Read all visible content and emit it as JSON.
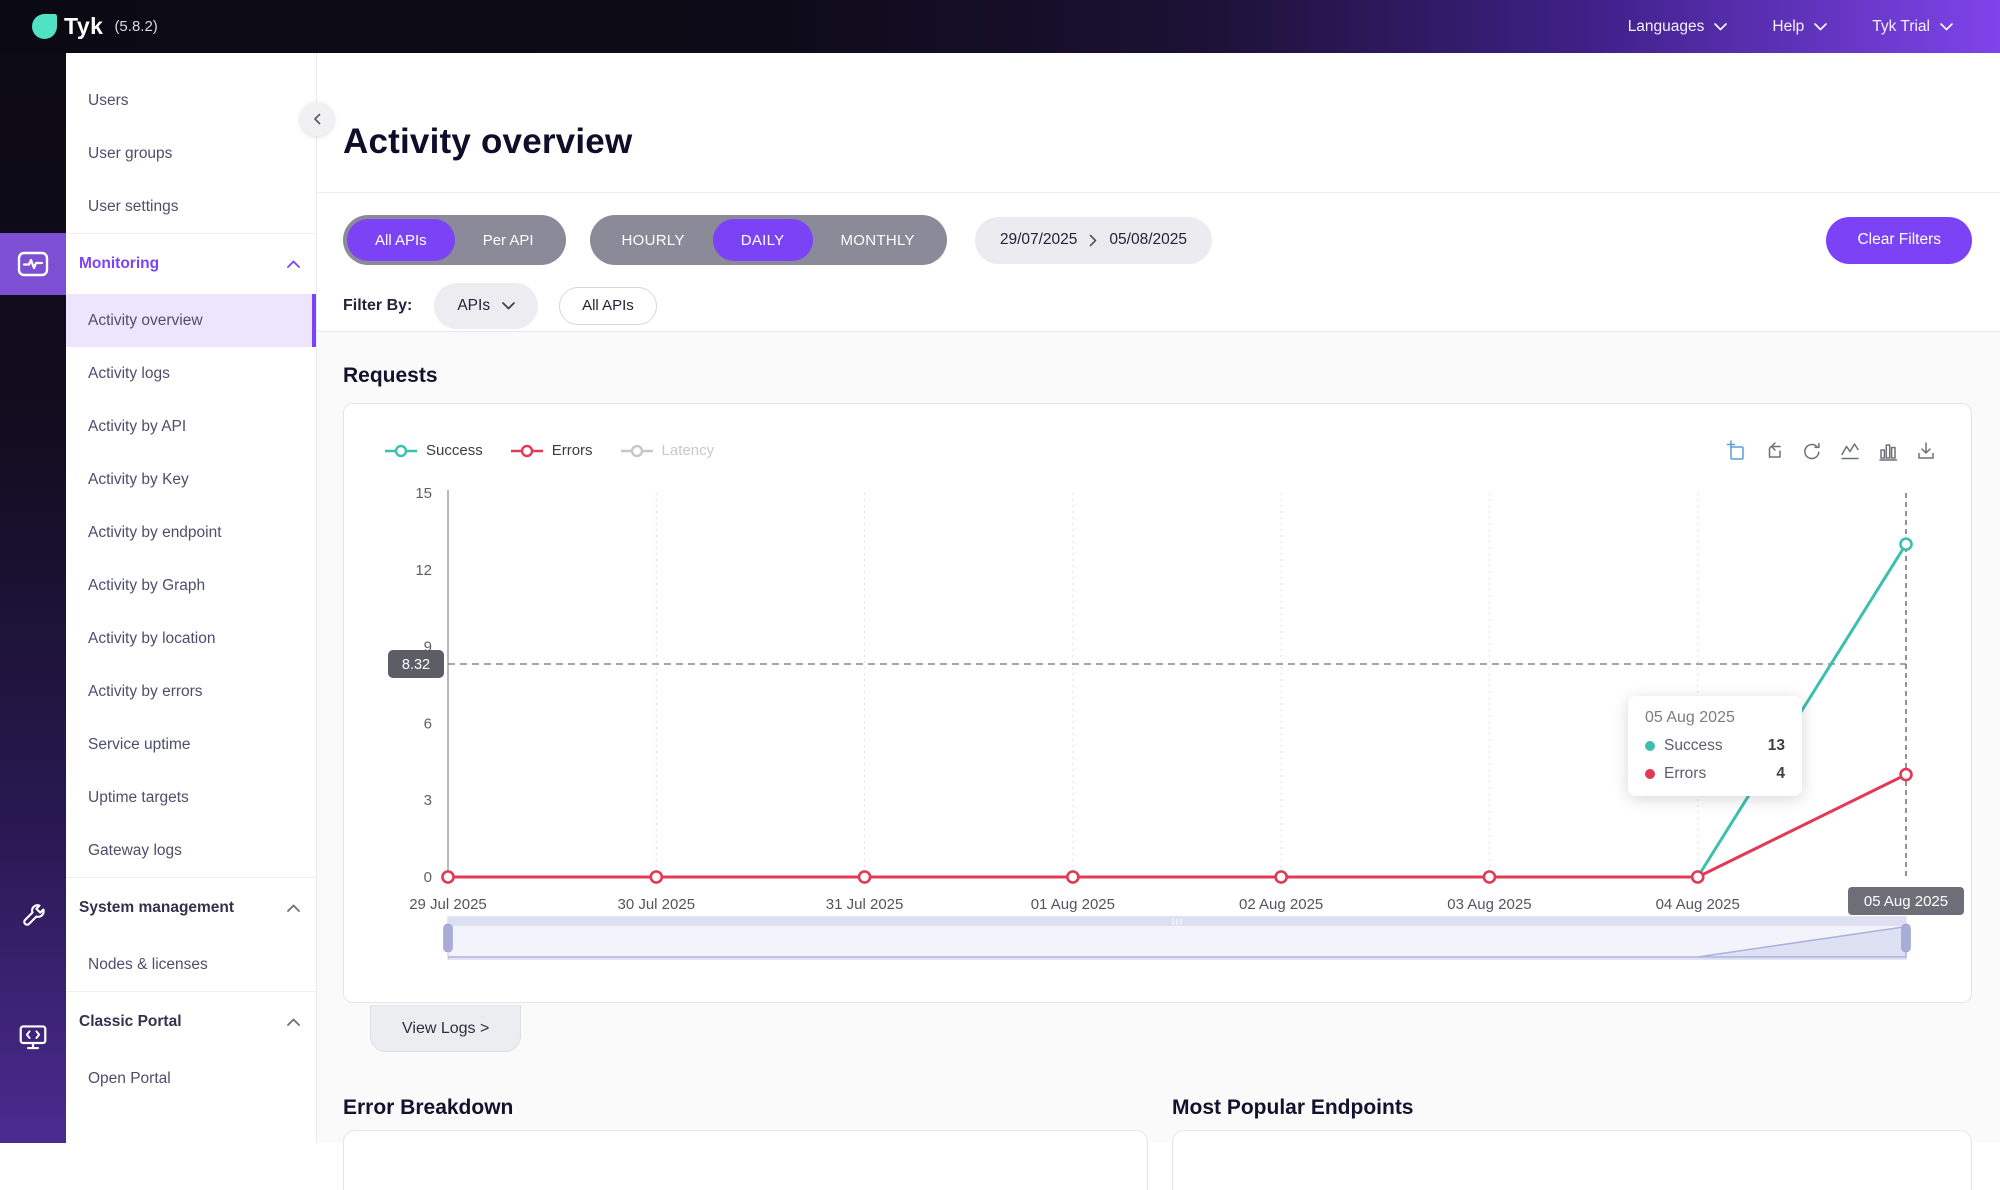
{
  "colors": {
    "accent": "#7B42F6",
    "success": "#3CBFAE",
    "errors": "#E23A55",
    "latency": "#C6C6CC"
  },
  "topbar": {
    "logo": "Tyk",
    "version": "(5.8.2)",
    "menus": [
      {
        "label": "Languages"
      },
      {
        "label": "Help"
      },
      {
        "label": "Tyk Trial"
      }
    ]
  },
  "sidebar": {
    "top_items": [
      {
        "label": "Users"
      },
      {
        "label": "User groups"
      },
      {
        "label": "User settings"
      }
    ],
    "sections": [
      {
        "label": "Monitoring",
        "expanded": true,
        "items": [
          {
            "label": "Activity overview",
            "active": true
          },
          {
            "label": "Activity logs"
          },
          {
            "label": "Activity by API"
          },
          {
            "label": "Activity by Key"
          },
          {
            "label": "Activity by endpoint"
          },
          {
            "label": "Activity by Graph"
          },
          {
            "label": "Activity by location"
          },
          {
            "label": "Activity by errors"
          },
          {
            "label": "Service uptime"
          },
          {
            "label": "Uptime targets"
          },
          {
            "label": "Gateway logs"
          }
        ]
      },
      {
        "label": "System management",
        "expanded": true,
        "items": [
          {
            "label": "Nodes & licenses"
          }
        ]
      },
      {
        "label": "Classic Portal",
        "expanded": true,
        "items": [
          {
            "label": "Open Portal"
          }
        ]
      }
    ]
  },
  "header": {
    "title": "Activity overview"
  },
  "filters": {
    "api_toggle": {
      "options": [
        "All APIs",
        "Per API"
      ],
      "selected": "All APIs"
    },
    "period_toggle": {
      "options": [
        "HOURLY",
        "DAILY",
        "MONTHLY"
      ],
      "selected": "DAILY"
    },
    "date_range": {
      "from": "29/07/2025",
      "to": "05/08/2025"
    },
    "filter_by_label": "Filter By:",
    "filter_dropdown": "APIs",
    "filter_chip": "All APIs",
    "clear_button": "Clear Filters"
  },
  "requests_section": {
    "title": "Requests",
    "view_logs_label": "View Logs >"
  },
  "chart_data": {
    "type": "line",
    "title": "Requests",
    "categories": [
      "29 Jul 2025",
      "30 Jul 2025",
      "31 Jul 2025",
      "01 Aug 2025",
      "02 Aug 2025",
      "03 Aug 2025",
      "04 Aug 2025",
      "05 Aug 2025"
    ],
    "series": [
      {
        "name": "Success",
        "color": "#3CBFAE",
        "values": [
          0,
          0,
          0,
          0,
          0,
          0,
          0,
          13
        ]
      },
      {
        "name": "Errors",
        "color": "#E23A55",
        "values": [
          0,
          0,
          0,
          0,
          0,
          0,
          0,
          4
        ]
      },
      {
        "name": "Latency",
        "color": "#C6C6CC",
        "disabled": true,
        "values": []
      }
    ],
    "ylim": [
      0,
      15
    ],
    "yticks": [
      0,
      3,
      6,
      9,
      12,
      15
    ],
    "grid": "vertical-dotted",
    "legend_position": "top-left",
    "pointer": {
      "y_value": 8.32,
      "x_category": "05 Aug 2025"
    },
    "tooltip": {
      "title": "05 Aug 2025",
      "rows": [
        {
          "name": "Success",
          "value": 13
        },
        {
          "name": "Errors",
          "value": 4
        }
      ]
    },
    "toolbox": [
      "zoom-select",
      "zoom-reset",
      "restore",
      "line-chart",
      "bar-chart",
      "download"
    ],
    "datazoom": {
      "left_handle": true,
      "right_handle": true
    }
  },
  "bottom_sections": [
    {
      "title": "Error Breakdown"
    },
    {
      "title": "Most Popular Endpoints"
    }
  ]
}
